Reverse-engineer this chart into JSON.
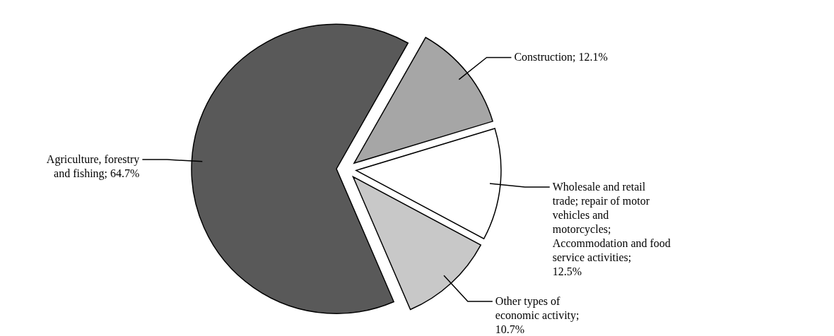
{
  "chart_data": {
    "type": "pie",
    "categories": [
      "Construction; 12.1%",
      "Wholesale and retail trade; repair of motor vehicles and motorcycles; Accommodation and food service activities; 12.5%",
      "Other types of economic activity; 10.7%",
      "Agriculture, forestry and fishing; 64.7%"
    ],
    "values": [
      12.1,
      12.5,
      10.7,
      64.7
    ],
    "colors": [
      "#a6a6a6",
      "#ffffff",
      "#c8c8c8",
      "#595959"
    ]
  }
}
